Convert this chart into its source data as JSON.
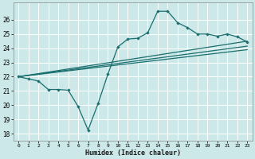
{
  "xlabel": "Humidex (Indice chaleur)",
  "bg_color": "#cce8e8",
  "grid_color": "#b8d8d8",
  "line_color": "#1a6e6e",
  "xlim": [
    -0.5,
    23.5
  ],
  "ylim": [
    17.5,
    27.2
  ],
  "yticks": [
    18,
    19,
    20,
    21,
    22,
    23,
    24,
    25,
    26
  ],
  "xticks": [
    0,
    1,
    2,
    3,
    4,
    5,
    6,
    7,
    8,
    9,
    10,
    11,
    12,
    13,
    14,
    15,
    16,
    17,
    18,
    19,
    20,
    21,
    22,
    23
  ],
  "line1_x": [
    0,
    1,
    2,
    3,
    4,
    5,
    6,
    7,
    8,
    9,
    10,
    11,
    12,
    13,
    14,
    15,
    16,
    17,
    18,
    19,
    20,
    21,
    22,
    23
  ],
  "line1_y": [
    22.0,
    21.85,
    21.7,
    21.1,
    21.1,
    21.05,
    19.9,
    18.25,
    20.1,
    22.2,
    24.1,
    24.65,
    24.7,
    25.1,
    26.6,
    26.6,
    25.8,
    25.45,
    25.0,
    25.0,
    24.85,
    25.0,
    24.8,
    24.45
  ],
  "line2_x": [
    0,
    23
  ],
  "line2_y": [
    22.0,
    24.5
  ],
  "line3_x": [
    0,
    23
  ],
  "line3_y": [
    22.0,
    24.15
  ],
  "line4_x": [
    0,
    23
  ],
  "line4_y": [
    22.0,
    23.9
  ]
}
